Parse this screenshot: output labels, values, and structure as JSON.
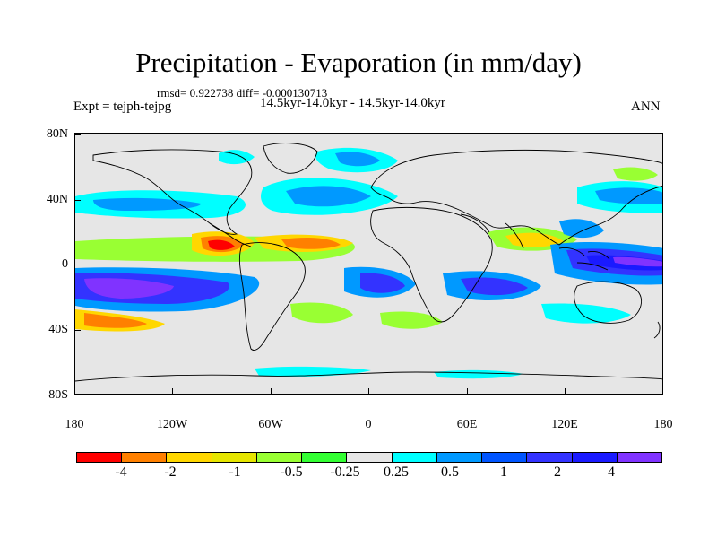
{
  "title": "Precipitation - Evaporation (in mm/day)",
  "stats": "rmsd= 0.922738 diff= -0.000130713",
  "expt": "Expt = tejph-tejpg",
  "period": "14.5kyr-14.0kyr - 14.5kyr-14.0kyr",
  "season": "ANN",
  "lat_labels": [
    "80N",
    "40N",
    "0",
    "40S",
    "80S"
  ],
  "lon_labels": [
    "180",
    "120W",
    "60W",
    "0",
    "60E",
    "120E",
    "180"
  ],
  "colorbar": {
    "colors": [
      "#ff0000",
      "#ff8000",
      "#ffd700",
      "#e6e600",
      "#99ff33",
      "#33ff33",
      "#e6e6e6",
      "#00ffff",
      "#0099ff",
      "#0055ff",
      "#3333ff",
      "#1a1aff",
      "#8033ff"
    ],
    "labels": [
      "-4",
      "-2",
      "-1",
      "-0.5",
      "-0.25",
      "0.25",
      "0.5",
      "1",
      "2",
      "4"
    ]
  },
  "palette": {
    "neg4": "#ff0000",
    "neg2": "#ff8000",
    "neg1": "#e6e600",
    "neg05": "#99ff33",
    "neg025": "#33ff33",
    "zero": "#e6e6e6",
    "pos025": "#00ffff",
    "pos05": "#0099ff",
    "pos1": "#0055ff",
    "pos2": "#3333ff",
    "pos4": "#8033ff"
  }
}
